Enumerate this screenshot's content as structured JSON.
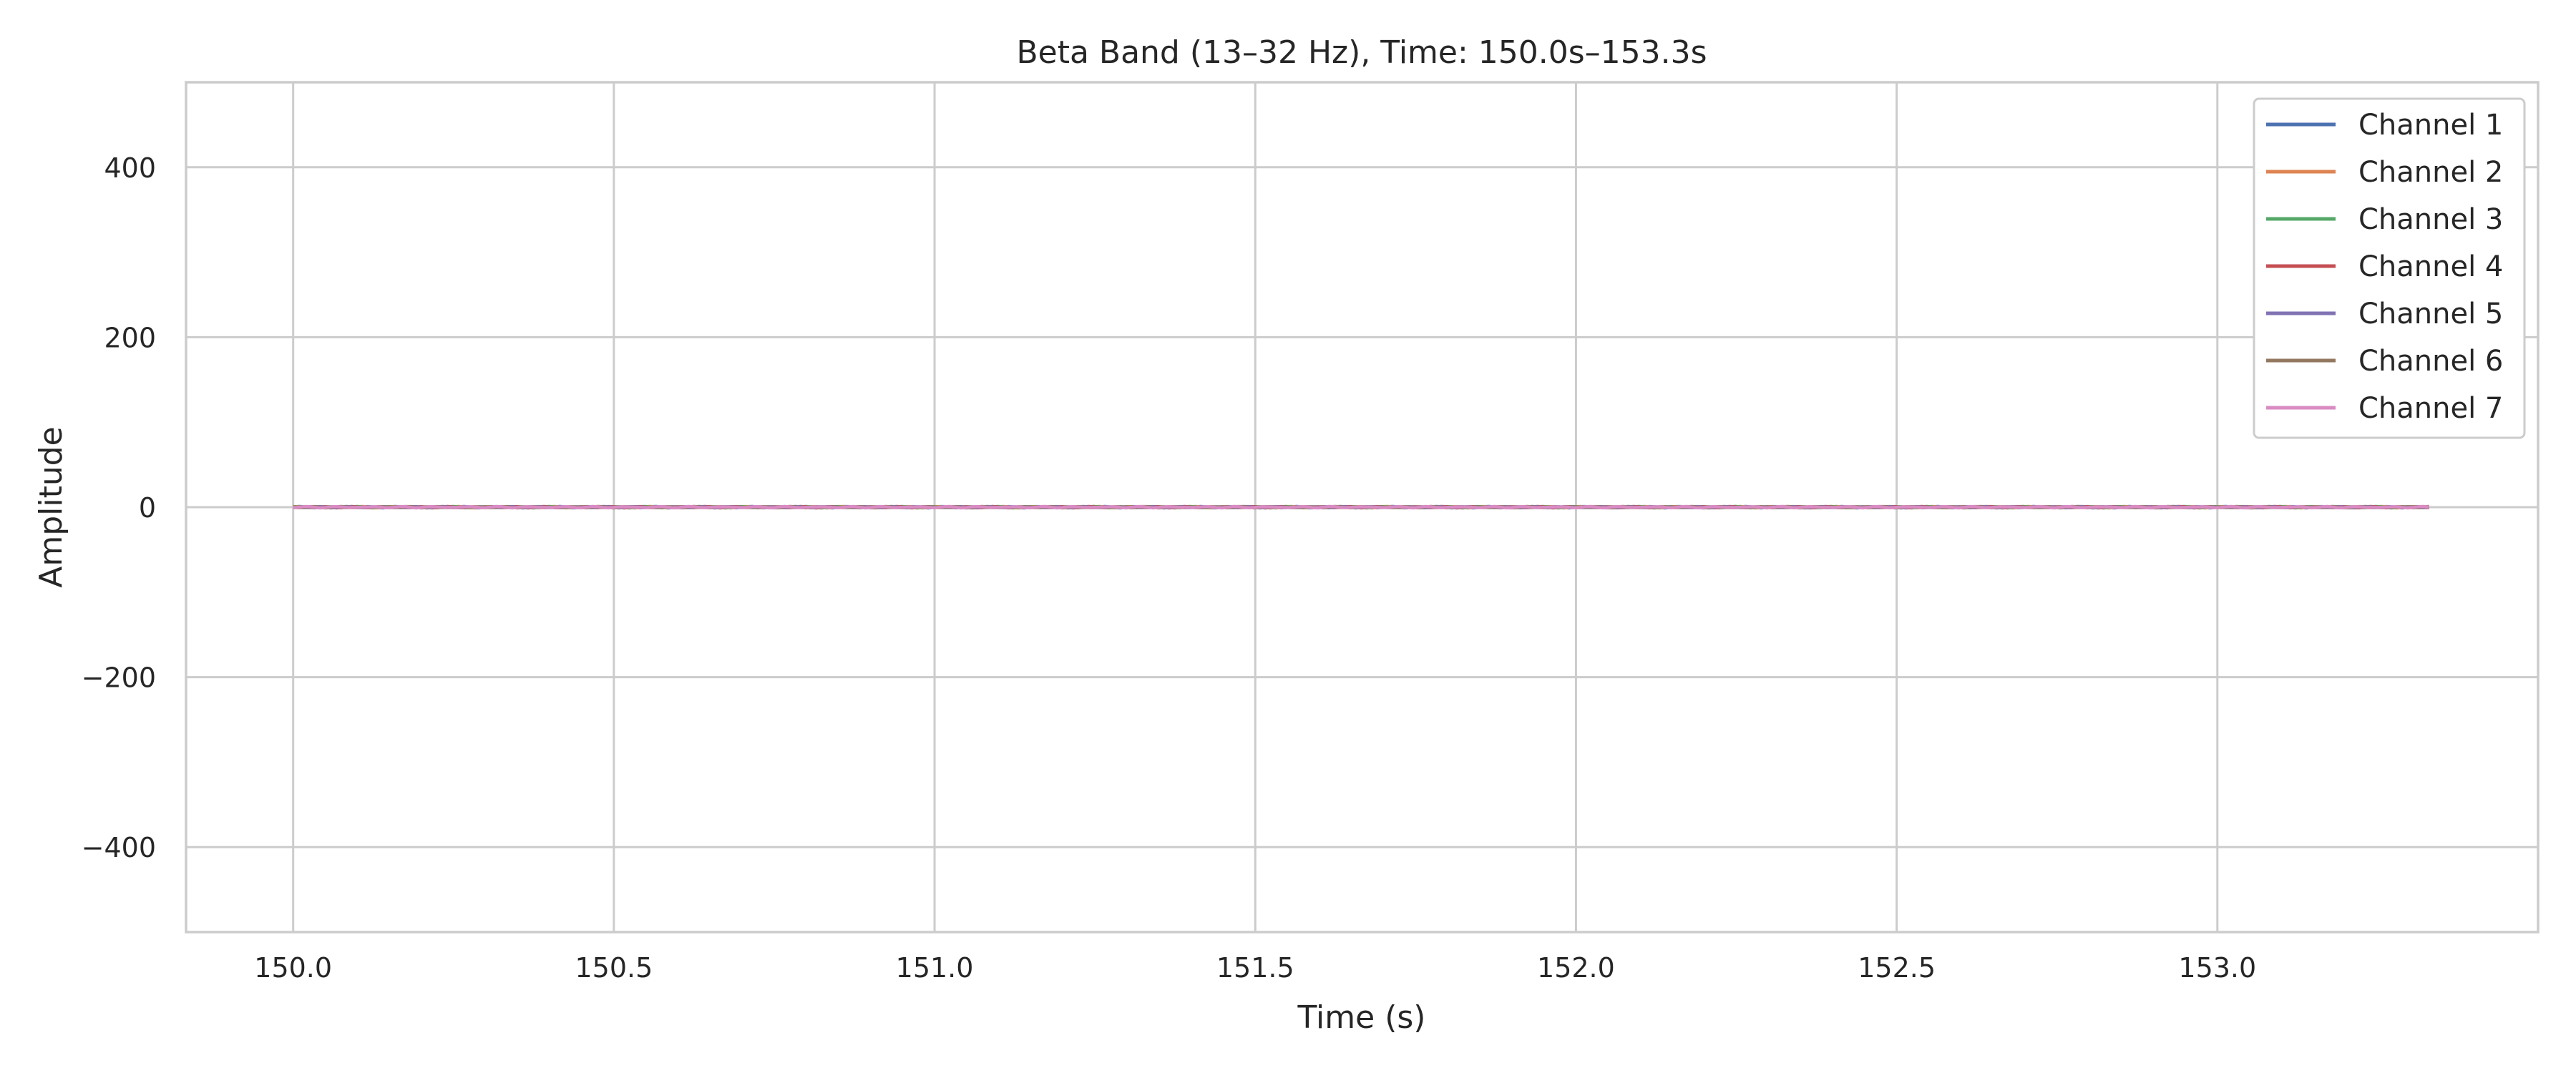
{
  "chart_data": {
    "type": "line",
    "title": "Beta Band (13–32 Hz), Time: 150.0s–153.3s",
    "xlabel": "Time (s)",
    "ylabel": "Amplitude",
    "xlim": [
      149.833,
      153.5
    ],
    "ylim": [
      -500,
      500
    ],
    "xticks": [
      150.0,
      150.5,
      151.0,
      151.5,
      152.0,
      152.5,
      153.0
    ],
    "xtick_labels": [
      "150.0",
      "150.5",
      "151.0",
      "151.5",
      "152.0",
      "152.5",
      "153.0"
    ],
    "yticks": [
      400,
      200,
      0,
      -200,
      -400
    ],
    "ytick_labels": [
      "400",
      "200",
      "0",
      "−200",
      "−400"
    ],
    "grid": true,
    "legend_position": "top-right",
    "x_range": [
      150.0,
      153.33
    ],
    "series": [
      {
        "name": "Channel 1",
        "color": "#4c72b0",
        "amplitude": 0.6
      },
      {
        "name": "Channel 2",
        "color": "#dd8452",
        "amplitude": 0.6
      },
      {
        "name": "Channel 3",
        "color": "#55a868",
        "amplitude": 0.6
      },
      {
        "name": "Channel 4",
        "color": "#c44e52",
        "amplitude": 0.6
      },
      {
        "name": "Channel 5",
        "color": "#8172b3",
        "amplitude": 0.6
      },
      {
        "name": "Channel 6",
        "color": "#937860",
        "amplitude": 0.6
      },
      {
        "name": "Channel 7",
        "color": "#da8bc3",
        "amplitude": 0.6
      }
    ]
  }
}
